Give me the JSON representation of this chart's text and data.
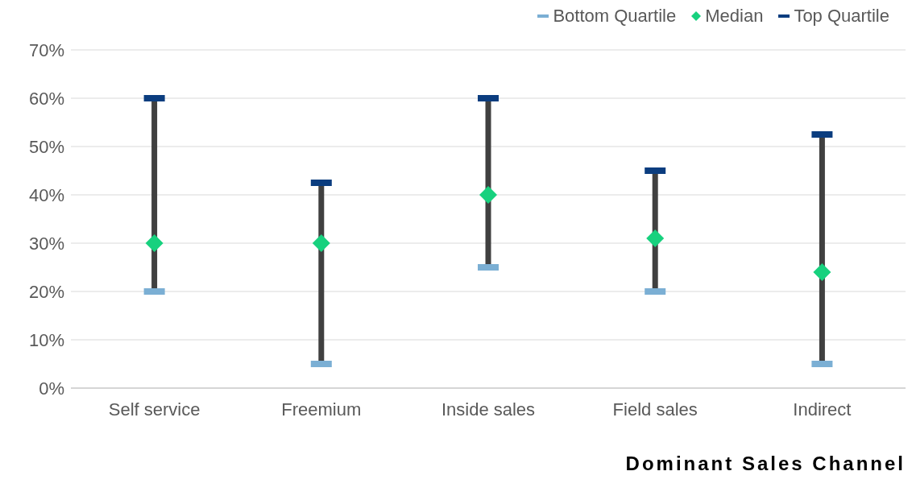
{
  "chart_data": {
    "type": "scatter",
    "xlabel": "Dominant Sales Channel",
    "categories": [
      "Self service",
      "Freemium",
      "Inside sales",
      "Field sales",
      "Indirect"
    ],
    "series": [
      {
        "type": "line",
        "color": "#404040",
        "marker": "none",
        "x": [
          "Self service",
          "Self service"
        ],
        "values": [
          20,
          60
        ]
      },
      {
        "type": "line",
        "color": "#404040",
        "marker": "none",
        "x": [
          "Freemium",
          "Freemium"
        ],
        "values": [
          5,
          42.5
        ]
      },
      {
        "type": "line",
        "color": "#404040",
        "marker": "none",
        "x": [
          "Inside sales",
          "Inside sales"
        ],
        "values": [
          25,
          60
        ]
      },
      {
        "type": "line",
        "color": "#404040",
        "marker": "none",
        "x": [
          "Field sales",
          "Field sales"
        ],
        "values": [
          20,
          45
        ]
      },
      {
        "type": "line",
        "color": "#404040",
        "marker": "none",
        "x": [
          "Indirect",
          "Indirect"
        ],
        "values": [
          5,
          52.5
        ]
      },
      {
        "name": "Bottom Quartile",
        "color": "#7bafd4",
        "marker": "square",
        "values": [
          20,
          5,
          25,
          20,
          5
        ]
      },
      {
        "name": "Median",
        "color": "#17d17e",
        "marker": "diamond",
        "values": [
          30,
          30,
          40,
          31,
          24
        ]
      },
      {
        "name": "Top Quartile",
        "color": "#0b3d7f",
        "marker": "square",
        "values": [
          60,
          42.5,
          60,
          45,
          52.5
        ]
      }
    ],
    "ylim": [
      0,
      70
    ],
    "yticks": [
      {
        "value": 0,
        "label": "0%"
      },
      {
        "value": 10,
        "label": "10%"
      },
      {
        "value": 20,
        "label": "20%"
      },
      {
        "value": 30,
        "label": "30%"
      },
      {
        "value": 40,
        "label": "40%"
      },
      {
        "value": 50,
        "label": "50%"
      },
      {
        "value": 60,
        "label": "60%"
      },
      {
        "value": 70,
        "label": "70%"
      }
    ],
    "grid": "y",
    "legend": "top right"
  }
}
